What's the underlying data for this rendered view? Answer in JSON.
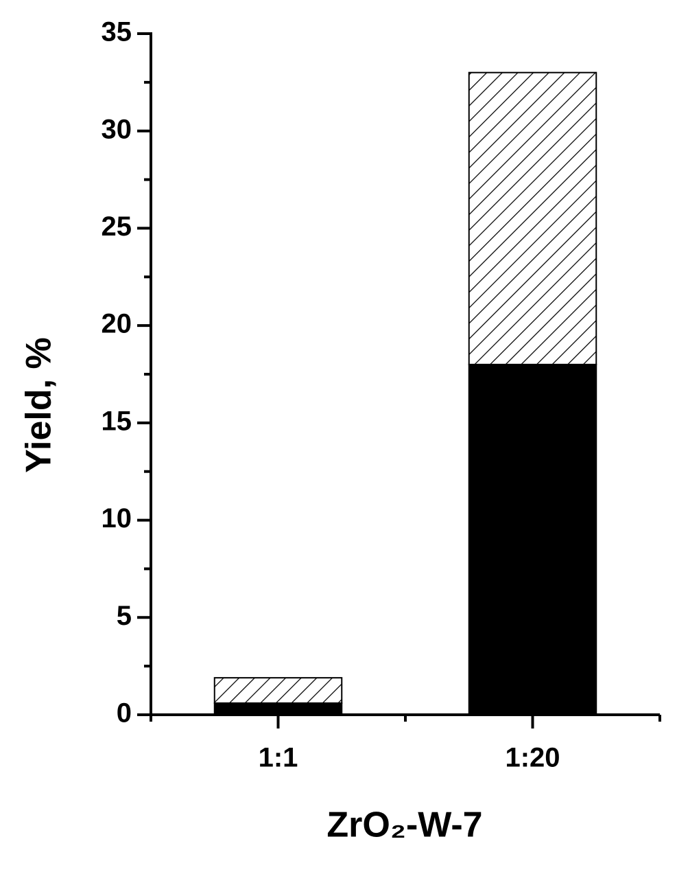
{
  "chart_data": {
    "type": "stacked-bar",
    "categories": [
      "1:1",
      "1:20"
    ],
    "series": [
      {
        "color": "#000000",
        "hatch": false,
        "values": [
          0.6,
          18
        ]
      },
      {
        "color": "#000000",
        "hatch": true,
        "values": [
          1.3,
          15
        ]
      }
    ],
    "ylim": [
      0,
      35
    ],
    "yticks": [
      0,
      5,
      10,
      15,
      20,
      25,
      30,
      35
    ],
    "ylabel": "Yield, %",
    "xlabel": "ZrO₂-W-7"
  }
}
